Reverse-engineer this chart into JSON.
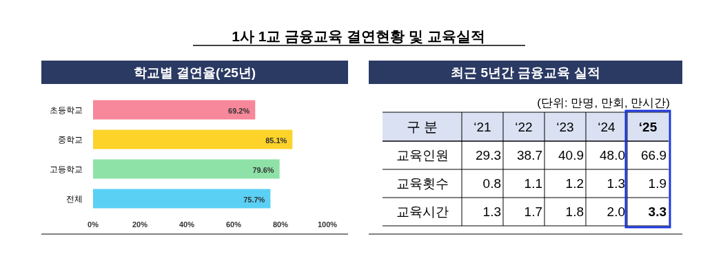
{
  "chart_data": [
    {
      "type": "bar",
      "orientation": "horizontal",
      "title": "1사 1교 금융교육 결연현황 및 교육실적",
      "subtitle": "학교별 결연율(‘25년)",
      "categories": [
        "초등학교",
        "중학교",
        "고등학교",
        "전체"
      ],
      "values": [
        69.2,
        85.1,
        79.6,
        75.7
      ],
      "colors": [
        "#f7879a",
        "#fdd32a",
        "#8ee2a8",
        "#5bd0f5"
      ],
      "value_labels": [
        "69.2%",
        "85.1%",
        "79.6%",
        "75.7%"
      ],
      "xlim": [
        0,
        100
      ],
      "xticks": [
        {
          "value": 0,
          "label": "0%"
        },
        {
          "value": 20,
          "label": "20%"
        },
        {
          "value": 40,
          "label": "40%"
        },
        {
          "value": 60,
          "label": "60%"
        },
        {
          "value": 80,
          "label": "80%"
        },
        {
          "value": 100,
          "label": "100%"
        }
      ]
    },
    {
      "type": "heatmap",
      "title": "최근 5년간 금융교육 실적",
      "subtitle": "(단위: 만명, 만회, 만시간)",
      "ylabel": "구 분",
      "categories": [
        "‘21",
        "‘22",
        "‘23",
        "‘24",
        "‘25"
      ],
      "y_categories": [
        "교육인원",
        "교육횟수",
        "교육시간"
      ],
      "cells": [
        [
          29.3,
          38.7,
          40.9,
          48.0,
          66.9
        ],
        [
          0.8,
          1.1,
          1.2,
          1.3,
          1.9
        ],
        [
          1.3,
          1.7,
          1.8,
          2.0,
          3.3
        ]
      ],
      "data_labels": true,
      "cell_labels": [
        [
          "29.3",
          "38.7",
          "40.9",
          "48.0",
          "66.9"
        ],
        [
          "0.8",
          "1.1",
          "1.2",
          "1.3",
          "1.9"
        ],
        [
          "1.3",
          "1.7",
          "1.8",
          "2.0",
          "3.3"
        ]
      ]
    }
  ]
}
